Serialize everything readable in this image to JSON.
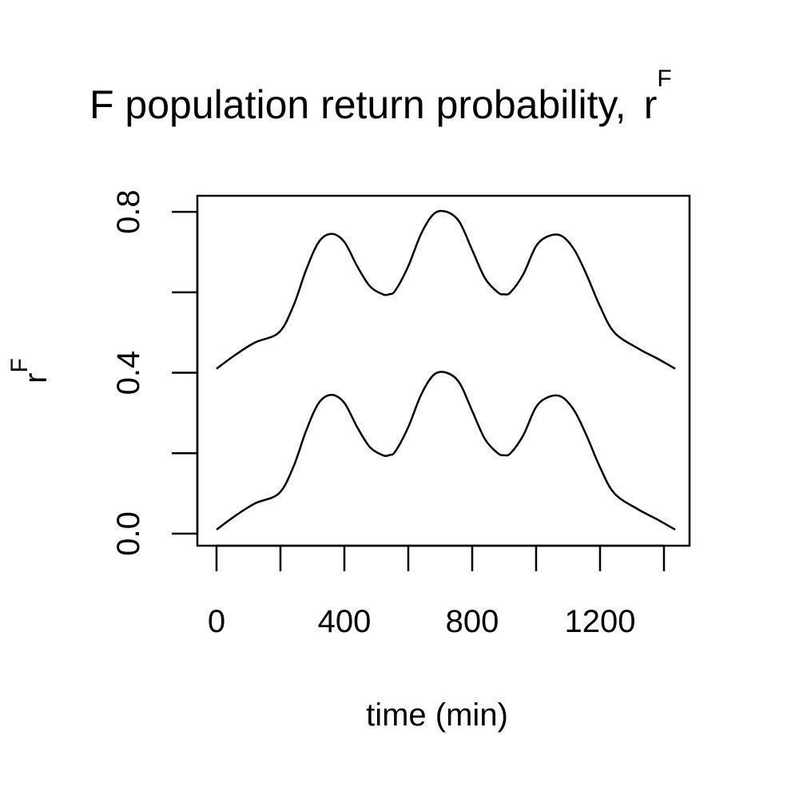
{
  "chart_data": {
    "type": "line",
    "title": "F population return probability,",
    "title_symbol": "r",
    "title_superscript": "F",
    "xlabel": "time (min)",
    "ylabel": "r",
    "ylabel_superscript": "F",
    "xlim": [
      -60,
      1480
    ],
    "ylim": [
      -0.03,
      0.84
    ],
    "x_ticks": [
      0,
      200,
      400,
      600,
      800,
      1000,
      1200,
      1400
    ],
    "x_tick_labels": [
      "0",
      "",
      "400",
      "",
      "800",
      "",
      "1200",
      ""
    ],
    "y_ticks": [
      0.0,
      0.2,
      0.4,
      0.6,
      0.8
    ],
    "y_tick_labels": [
      "0.0",
      "",
      "0.4",
      "",
      "0.8"
    ],
    "grid": false,
    "line_color": "#000000",
    "series": [
      {
        "x": [
          0,
          60,
          120,
          195,
          240,
          280,
          320,
          360,
          400,
          440,
          480,
          520,
          540,
          560,
          600,
          640,
          680,
          720,
          760,
          800,
          840,
          880,
          900,
          920,
          960,
          1000,
          1040,
          1080,
          1120,
          1160,
          1200,
          1245,
          1320,
          1380,
          1435
        ],
        "values": [
          0.41,
          0.445,
          0.475,
          0.5,
          0.565,
          0.655,
          0.725,
          0.745,
          0.725,
          0.665,
          0.615,
          0.595,
          0.595,
          0.605,
          0.665,
          0.745,
          0.795,
          0.8,
          0.775,
          0.705,
          0.635,
          0.6,
          0.595,
          0.6,
          0.645,
          0.715,
          0.74,
          0.74,
          0.705,
          0.64,
          0.565,
          0.5,
          0.46,
          0.435,
          0.41
        ]
      },
      {
        "x": [
          0,
          60,
          120,
          195,
          240,
          280,
          320,
          360,
          400,
          440,
          480,
          520,
          540,
          560,
          600,
          640,
          680,
          720,
          760,
          800,
          840,
          880,
          900,
          920,
          960,
          1000,
          1040,
          1080,
          1120,
          1160,
          1200,
          1245,
          1320,
          1380,
          1435
        ],
        "values": [
          0.01,
          0.045,
          0.075,
          0.1,
          0.165,
          0.255,
          0.325,
          0.345,
          0.325,
          0.265,
          0.215,
          0.195,
          0.195,
          0.205,
          0.265,
          0.345,
          0.395,
          0.4,
          0.375,
          0.305,
          0.235,
          0.2,
          0.195,
          0.2,
          0.245,
          0.315,
          0.34,
          0.34,
          0.305,
          0.24,
          0.165,
          0.1,
          0.06,
          0.035,
          0.01
        ]
      }
    ]
  }
}
